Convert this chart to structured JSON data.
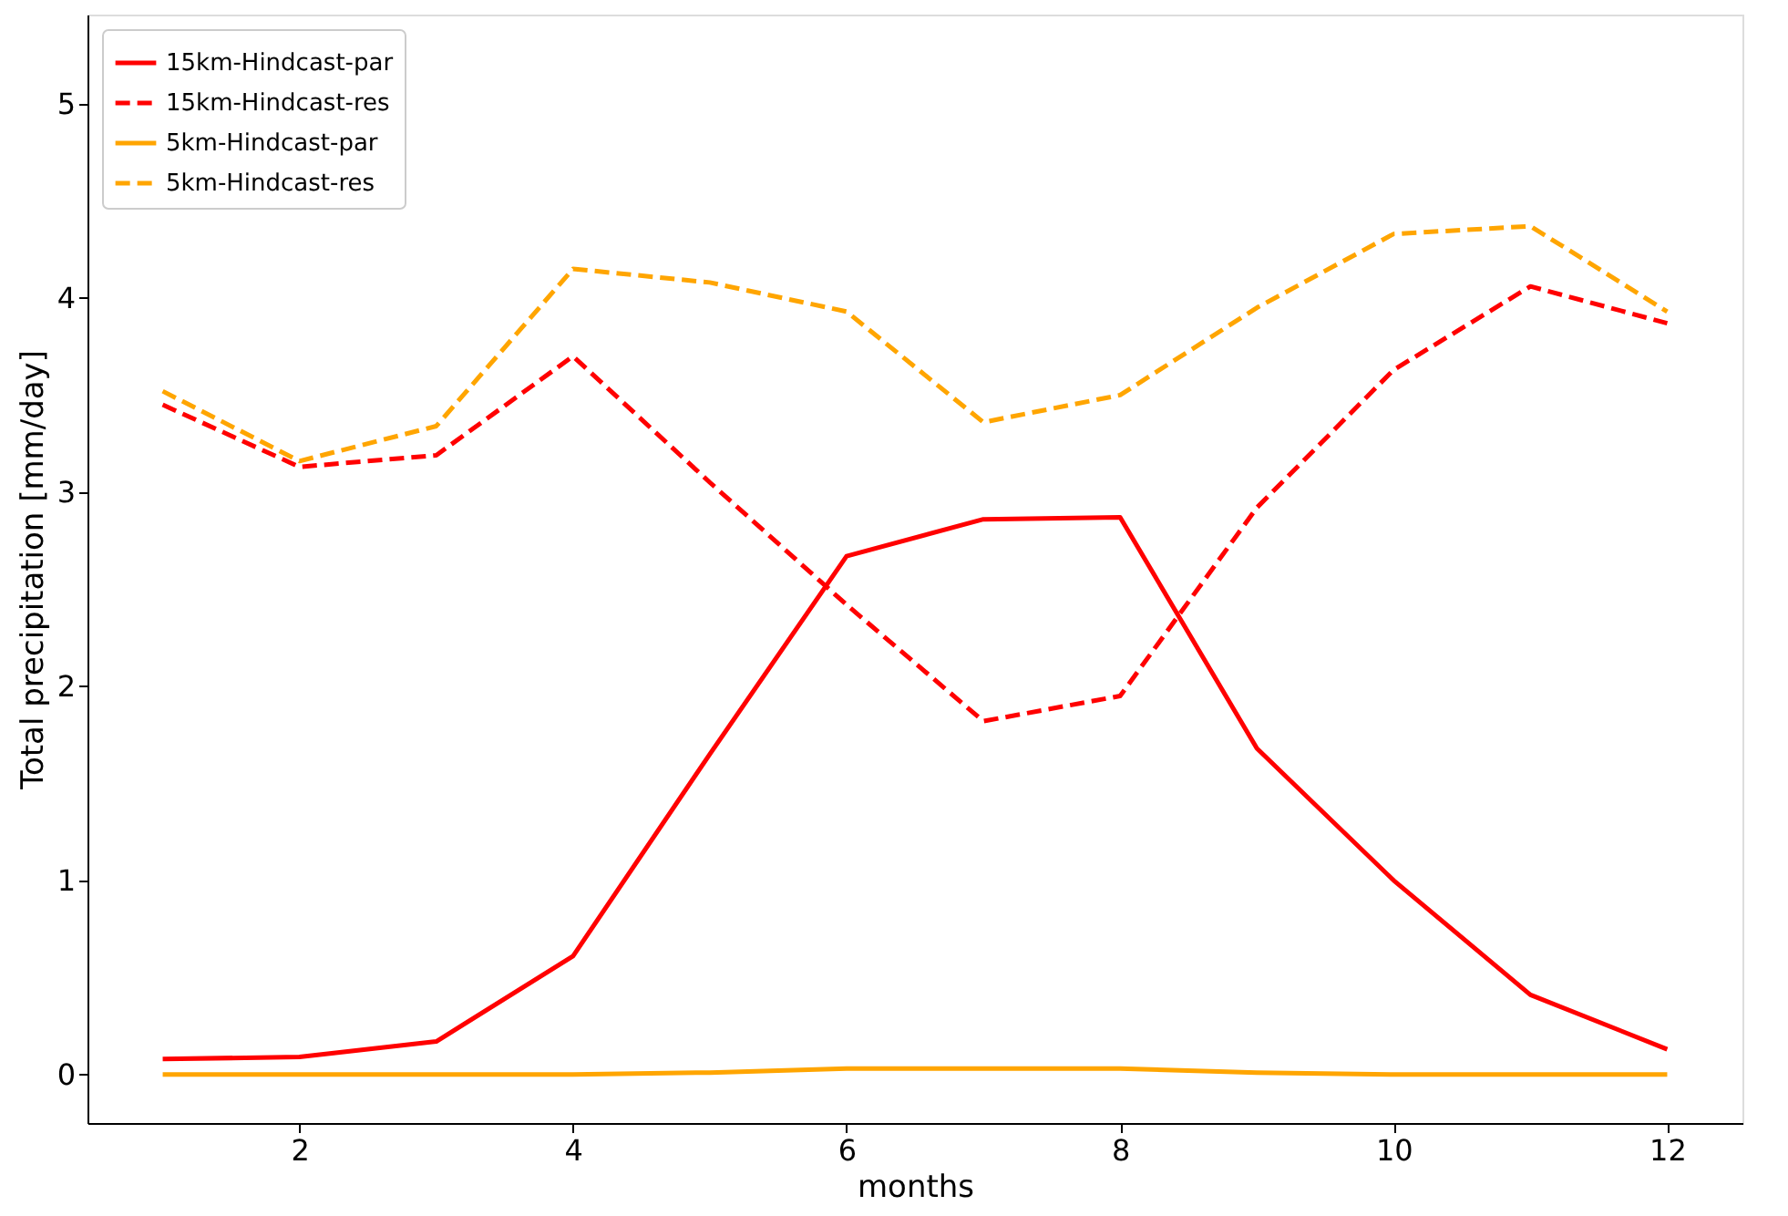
{
  "chart_data": {
    "type": "line",
    "xlabel": "months",
    "ylabel": "Total precipitation [mm/day]",
    "x": [
      1,
      2,
      3,
      4,
      5,
      6,
      7,
      8,
      9,
      10,
      11,
      12
    ],
    "series": [
      {
        "name": "15km-Hindcast-par",
        "color": "#ff0000",
        "line_style": "solid",
        "values": [
          0.08,
          0.09,
          0.17,
          0.61,
          1.65,
          2.67,
          2.86,
          2.87,
          1.68,
          1.0,
          0.41,
          0.13
        ]
      },
      {
        "name": "15km-Hindcast-res",
        "color": "#ff0000",
        "line_style": "dashed",
        "values": [
          3.45,
          3.13,
          3.19,
          3.7,
          3.05,
          2.42,
          1.82,
          1.95,
          2.92,
          3.63,
          4.06,
          3.87
        ]
      },
      {
        "name": "5km-Hindcast-par",
        "color": "#ffa500",
        "line_style": "solid",
        "values": [
          0.0,
          0.0,
          0.0,
          0.0,
          0.01,
          0.03,
          0.03,
          0.03,
          0.01,
          0.0,
          0.0,
          0.0
        ]
      },
      {
        "name": "5km-Hindcast-res",
        "color": "#ffa500",
        "line_style": "dashed",
        "values": [
          3.52,
          3.16,
          3.34,
          4.15,
          4.08,
          3.93,
          3.36,
          3.5,
          3.95,
          4.33,
          4.37,
          3.93
        ]
      }
    ],
    "xlim": [
      0.45,
      12.55
    ],
    "xticks": [
      2,
      4,
      6,
      8,
      10,
      12
    ],
    "ylim": [
      -0.25,
      5.46
    ],
    "yticks": [
      0,
      1,
      2,
      3,
      4,
      5
    ],
    "grid": false,
    "legend": "top left",
    "marker": "none"
  }
}
